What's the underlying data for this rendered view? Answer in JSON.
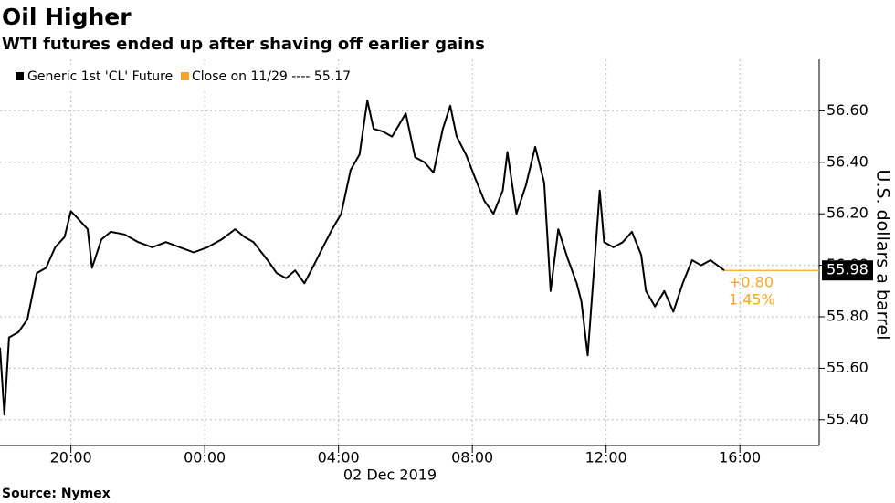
{
  "chart_data": {
    "type": "line",
    "title": "Oil Higher",
    "subtitle": "WTI futures ended up after shaving off earlier gains",
    "source": "Source: Nymex",
    "y_axis_label": "U.S. dollars a barrel",
    "date_label": "02 Dec 2019",
    "xlim": [
      -6.12,
      18.37
    ],
    "ylim": [
      55.3,
      56.8
    ],
    "xticks": [
      {
        "value": -4,
        "label": "20:00"
      },
      {
        "value": 0,
        "label": "00:00"
      },
      {
        "value": 4,
        "label": "04:00"
      },
      {
        "value": 8,
        "label": "08:00"
      },
      {
        "value": 12,
        "label": "12:00"
      },
      {
        "value": 16,
        "label": "16:00"
      }
    ],
    "yticks": [
      {
        "value": 55.4,
        "label": "55.40"
      },
      {
        "value": 55.6,
        "label": "55.60"
      },
      {
        "value": 55.8,
        "label": "55.80"
      },
      {
        "value": 56.0,
        "label": "56.00"
      },
      {
        "value": 56.2,
        "label": "56.20"
      },
      {
        "value": 56.4,
        "label": "56.40"
      },
      {
        "value": 56.6,
        "label": "56.60"
      }
    ],
    "grid": true,
    "series": [
      {
        "name": "Generic 1st 'CL' Future",
        "color": "#000000",
        "x": [
          -6.12,
          -5.99,
          -5.85,
          -5.57,
          -5.3,
          -5.02,
          -4.74,
          -4.47,
          -4.19,
          -4.0,
          -3.78,
          -3.5,
          -3.37,
          -3.09,
          -2.81,
          -2.4,
          -1.99,
          -1.57,
          -1.16,
          -0.74,
          -0.33,
          0.08,
          0.5,
          0.91,
          1.19,
          1.46,
          1.88,
          2.15,
          2.43,
          2.7,
          2.98,
          3.26,
          3.53,
          3.81,
          4.08,
          4.36,
          4.63,
          4.86,
          5.05,
          5.32,
          5.6,
          6.01,
          6.29,
          6.57,
          6.84,
          7.12,
          7.34,
          7.53,
          7.81,
          8.08,
          8.36,
          8.63,
          8.91,
          9.05,
          9.32,
          9.6,
          9.88,
          10.15,
          10.34,
          10.57,
          10.84,
          11.12,
          11.26,
          11.45,
          11.67,
          11.81,
          11.94,
          12.22,
          12.5,
          12.77,
          13.05,
          13.19,
          13.46,
          13.74,
          14.01,
          14.29,
          14.57,
          14.84,
          15.12,
          15.53
        ],
        "values": [
          55.68,
          55.42,
          55.72,
          55.74,
          55.79,
          55.97,
          55.99,
          56.07,
          56.11,
          56.21,
          56.18,
          56.14,
          55.99,
          56.1,
          56.13,
          56.12,
          56.09,
          56.07,
          56.09,
          56.07,
          56.05,
          56.07,
          56.1,
          56.14,
          56.11,
          56.09,
          56.02,
          55.97,
          55.95,
          55.98,
          55.93,
          56.0,
          56.07,
          56.14,
          56.2,
          56.37,
          56.43,
          56.64,
          56.53,
          56.52,
          56.5,
          56.59,
          56.42,
          56.4,
          56.36,
          56.53,
          56.62,
          56.5,
          56.43,
          56.34,
          56.25,
          56.2,
          56.29,
          56.44,
          56.2,
          56.31,
          56.46,
          56.32,
          55.9,
          56.14,
          56.03,
          55.93,
          55.86,
          55.65,
          56.04,
          56.29,
          56.09,
          56.07,
          56.09,
          56.13,
          56.04,
          55.9,
          55.84,
          55.9,
          55.82,
          55.93,
          56.02,
          56.0,
          56.02,
          55.98
        ]
      }
    ],
    "reference": {
      "name": "Close on 11/29 ---- 55.17",
      "color": "#f5a623"
    },
    "last_price": {
      "value": 55.98,
      "label": "55.98",
      "change": "+0.80",
      "change_pct": "1.45%",
      "color": "#f5a623"
    }
  }
}
